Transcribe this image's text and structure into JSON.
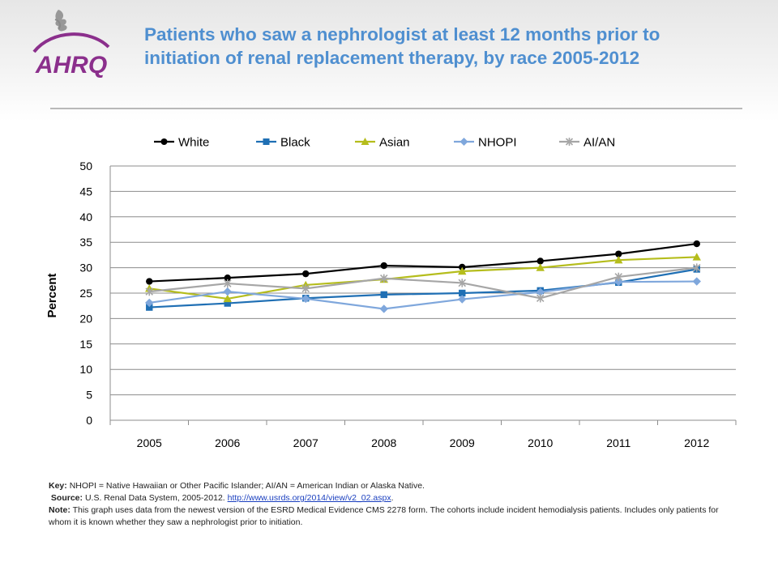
{
  "slide": {
    "title": "Patients who saw a nephrologist at least 12 months prior to initiation of renal replacement therapy, by race 2005-2012",
    "logo_text": "AHRQ",
    "logo_icon": "hhs-eagle-icon"
  },
  "footer": {
    "key_label": "Key:",
    "key_text": "NHOPI = Native Hawaiian or Other Pacific Islander; AI/AN = American Indian or Alaska Native.",
    "source_label": "Source:",
    "source_text": "U.S. Renal Data System, 2005-2012.",
    "source_link": "http://www.usrds.org/2014/view/v2_02.aspx",
    "source_end": ".",
    "note_label": "Note:",
    "note_text": "This graph uses data from the newest version of the ESRD Medical Evidence CMS 2278 form. The cohorts include incident hemodialysis patients. Includes only patients for whom it is known whether they saw a nephrologist prior to initiation."
  },
  "chart_data": {
    "type": "line",
    "title": "",
    "xlabel": "",
    "ylabel": "Percent",
    "x": [
      "2005",
      "2006",
      "2007",
      "2008",
      "2009",
      "2010",
      "2011",
      "2012"
    ],
    "ylim": [
      0,
      50
    ],
    "yticks": [
      0,
      5,
      10,
      15,
      20,
      25,
      30,
      35,
      40,
      45,
      50
    ],
    "grid": "horizontal",
    "legend_position": "top",
    "series": [
      {
        "name": "White",
        "color": "#000000",
        "marker": "circle",
        "values": [
          27.3,
          28.0,
          28.8,
          30.4,
          30.1,
          31.3,
          32.7,
          34.7
        ]
      },
      {
        "name": "Black",
        "color": "#1f6fb4",
        "marker": "square",
        "values": [
          22.2,
          23.0,
          24.0,
          24.7,
          25.0,
          25.5,
          27.1,
          29.7
        ]
      },
      {
        "name": "Asian",
        "color": "#b5bd1c",
        "marker": "triangle",
        "values": [
          25.9,
          23.9,
          26.6,
          27.7,
          29.3,
          30.0,
          31.5,
          32.1
        ]
      },
      {
        "name": "NHOPI",
        "color": "#7fa7dc",
        "marker": "diamond",
        "values": [
          23.1,
          25.3,
          23.9,
          21.9,
          23.8,
          25.2,
          27.2,
          27.3
        ]
      },
      {
        "name": "AI/AN",
        "color": "#a6a6a6",
        "marker": "star",
        "values": [
          25.3,
          26.9,
          25.9,
          27.9,
          27.0,
          24.0,
          28.2,
          30.0
        ]
      }
    ]
  }
}
